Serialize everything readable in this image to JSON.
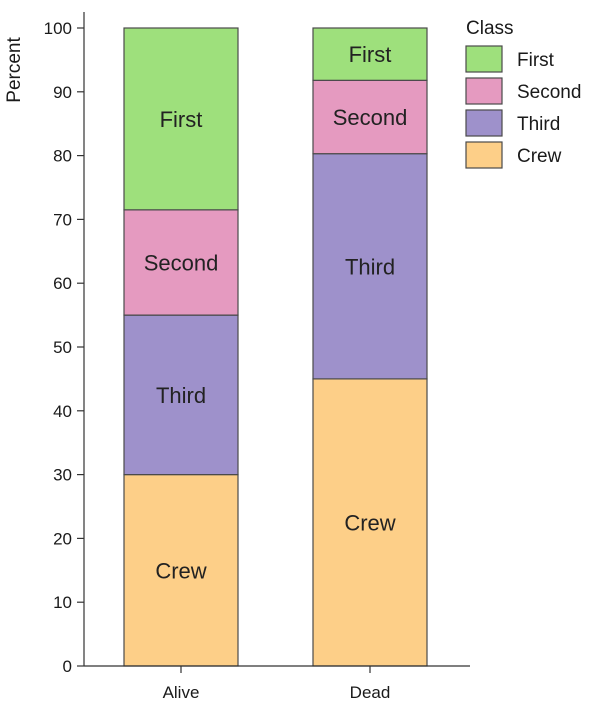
{
  "chart_data": {
    "type": "bar",
    "stacked": true,
    "percent": true,
    "ylabel": "Percent",
    "ylim": [
      0,
      100
    ],
    "yticks": [
      0,
      10,
      20,
      30,
      40,
      50,
      60,
      70,
      80,
      90,
      100
    ],
    "categories": [
      "Alive",
      "Dead"
    ],
    "legend": {
      "title": "Class",
      "position": "top-right",
      "order": [
        "First",
        "Second",
        "Third",
        "Crew"
      ]
    },
    "series": [
      {
        "name": "Crew",
        "color": "#fdcf88",
        "values": [
          30,
          45
        ]
      },
      {
        "name": "Third",
        "color": "#9e91cb",
        "values": [
          25,
          35.3
        ]
      },
      {
        "name": "Second",
        "color": "#e59ac0",
        "values": [
          16.5,
          11.5
        ]
      },
      {
        "name": "First",
        "color": "#9ee07c",
        "values": [
          28.5,
          8.2
        ]
      }
    ]
  }
}
